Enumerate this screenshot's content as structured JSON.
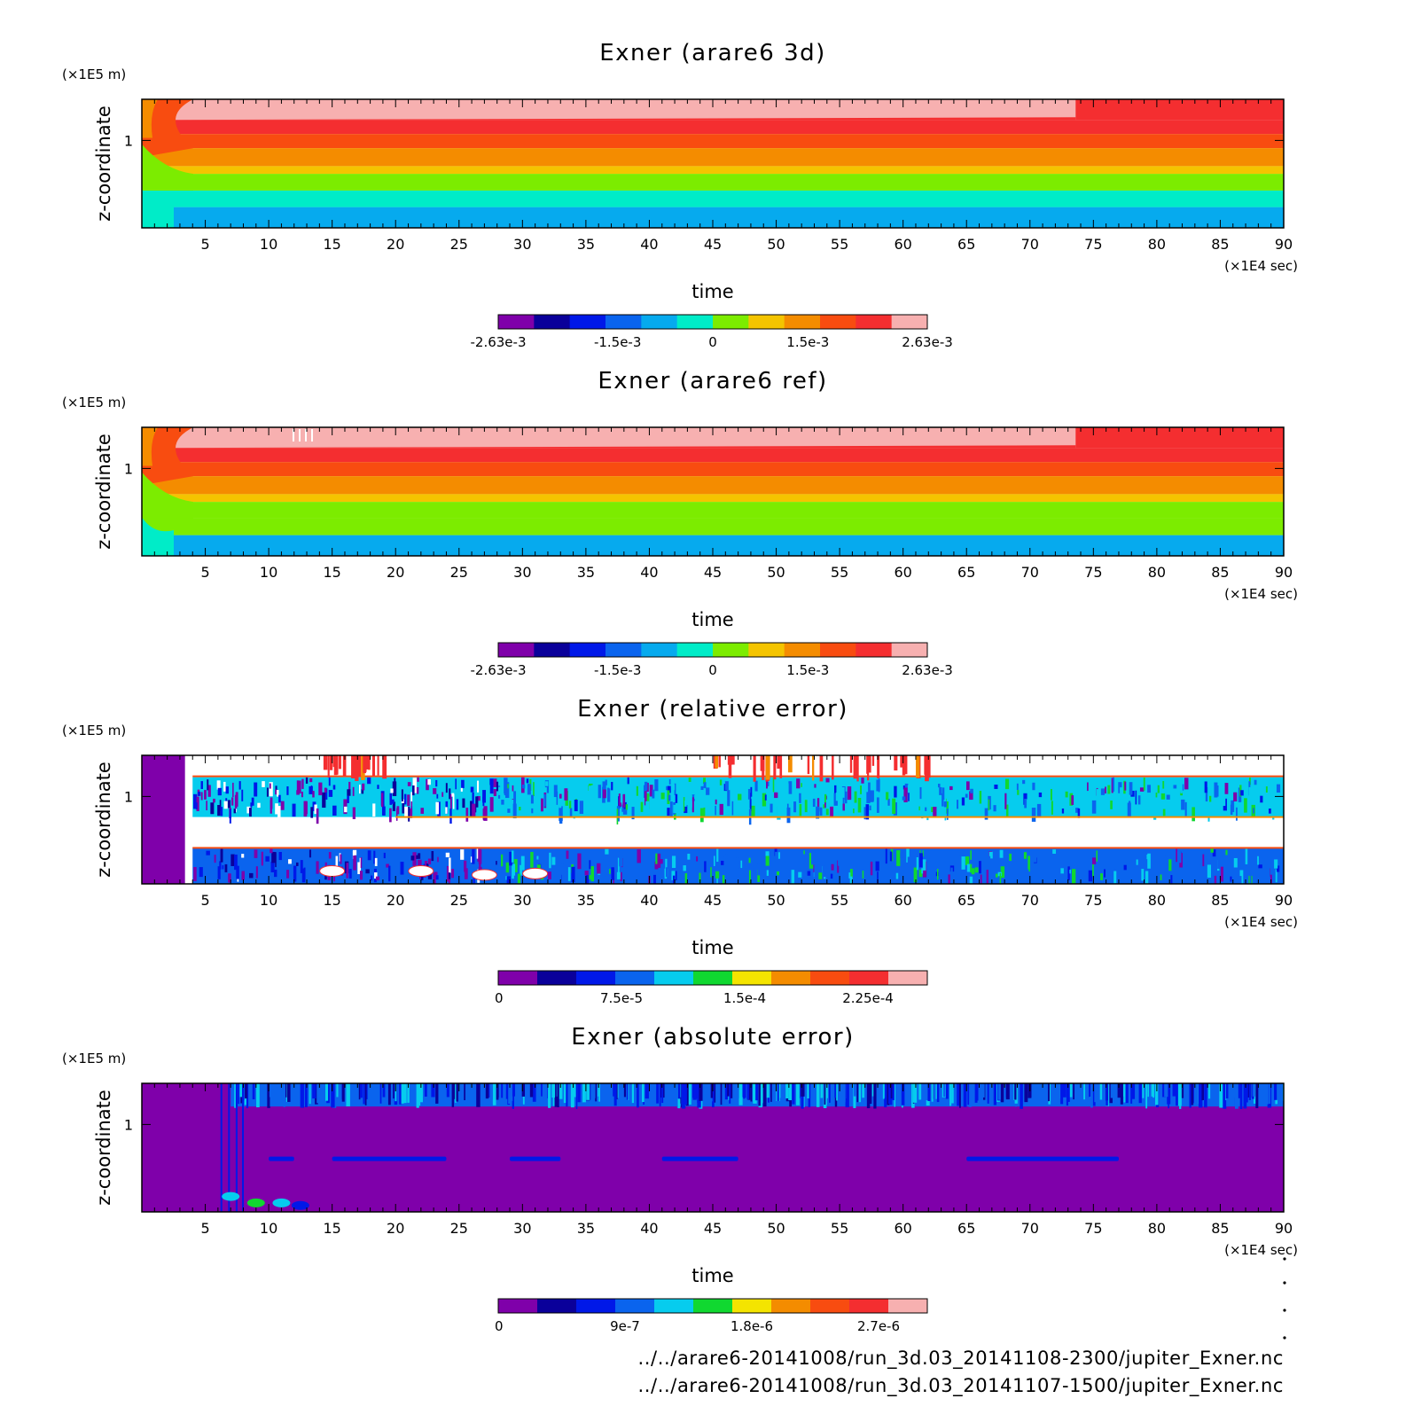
{
  "chart_data": [
    {
      "type": "heatmap",
      "title": "Exner (arare6 3d)",
      "xlabel": "time",
      "ylabel": "z-coordinate",
      "x_unit": "(×1E4 sec)",
      "y_unit": "(×1E5 m)",
      "xlim": [
        0,
        90
      ],
      "xticks": [
        "5",
        "10",
        "15",
        "20",
        "25",
        "30",
        "35",
        "40",
        "45",
        "50",
        "55",
        "60",
        "65",
        "70",
        "75",
        "80",
        "85",
        "90"
      ],
      "yticks": [
        "1"
      ],
      "colorbar": {
        "colors": [
          "#7f00aa",
          "#0a009a",
          "#0018e8",
          "#0a64ee",
          "#06aaee",
          "#00ecc8",
          "#7cec00",
          "#f4c400",
          "#f48c00",
          "#f84c10",
          "#f42e30",
          "#f7b0b0"
        ],
        "tick_labels": [
          "-2.63e-3",
          "-1.5e-3",
          "0",
          "1.5e-3",
          "2.63e-3"
        ]
      },
      "bands_top_to_bottom": [
        "#f7b0b0",
        "#f42e30",
        "#f84c10",
        "#f48c00",
        "#f4c400",
        "#7cec00",
        "#00ecc8",
        "#06aaee"
      ]
    },
    {
      "type": "heatmap",
      "title": "Exner (arare6 ref)",
      "xlabel": "time",
      "ylabel": "z-coordinate",
      "x_unit": "(×1E4 sec)",
      "y_unit": "(×1E5 m)",
      "xlim": [
        0,
        90
      ],
      "xticks": [
        "5",
        "10",
        "15",
        "20",
        "25",
        "30",
        "35",
        "40",
        "45",
        "50",
        "55",
        "60",
        "65",
        "70",
        "75",
        "80",
        "85",
        "90"
      ],
      "yticks": [
        "1"
      ],
      "colorbar": {
        "colors": [
          "#7f00aa",
          "#0a009a",
          "#0018e8",
          "#0a64ee",
          "#06aaee",
          "#00ecc8",
          "#7cec00",
          "#f4c400",
          "#f48c00",
          "#f84c10",
          "#f42e30",
          "#f7b0b0"
        ],
        "tick_labels": [
          "-2.63e-3",
          "-1.5e-3",
          "0",
          "1.5e-3",
          "2.63e-3"
        ]
      },
      "bands_top_to_bottom": [
        "#f7b0b0",
        "#f42e30",
        "#f84c10",
        "#f48c00",
        "#f4c400",
        "#7cec00",
        "#7cec00",
        "#06aaee"
      ]
    },
    {
      "type": "heatmap",
      "title": "Exner (relative error)",
      "xlabel": "time",
      "ylabel": "z-coordinate",
      "x_unit": "(×1E4 sec)",
      "y_unit": "(×1E5 m)",
      "xlim": [
        0,
        90
      ],
      "xticks": [
        "5",
        "10",
        "15",
        "20",
        "25",
        "30",
        "35",
        "40",
        "45",
        "50",
        "55",
        "60",
        "65",
        "70",
        "75",
        "80",
        "85",
        "90"
      ],
      "yticks": [
        "1"
      ],
      "colorbar": {
        "colors": [
          "#7f00aa",
          "#0a009a",
          "#0018e8",
          "#0a64ee",
          "#06ccee",
          "#10d830",
          "#f4e400",
          "#f48c00",
          "#f84c10",
          "#f42e30",
          "#f7b0b0"
        ],
        "tick_labels": [
          "0",
          "7.5e-5",
          "1.5e-4",
          "2.25e-4"
        ]
      }
    },
    {
      "type": "heatmap",
      "title": "Exner (absolute error)",
      "xlabel": "time",
      "ylabel": "z-coordinate",
      "x_unit": "(×1E4 sec)",
      "y_unit": "(×1E5 m)",
      "xlim": [
        0,
        90
      ],
      "xticks": [
        "5",
        "10",
        "15",
        "20",
        "25",
        "30",
        "35",
        "40",
        "45",
        "50",
        "55",
        "60",
        "65",
        "70",
        "75",
        "80",
        "85",
        "90"
      ],
      "yticks": [
        "1"
      ],
      "colorbar": {
        "colors": [
          "#7f00aa",
          "#0a009a",
          "#0018e8",
          "#0a64ee",
          "#06ccee",
          "#10d830",
          "#f4e400",
          "#f48c00",
          "#f84c10",
          "#f42e30",
          "#f7b0b0"
        ],
        "tick_labels": [
          "0",
          "9e-7",
          "1.8e-6",
          "2.7e-6"
        ]
      }
    }
  ],
  "footer": {
    "file_1": "../../arare6-20141008/run_3d.03_20141108-2300/jupiter_Exner.nc",
    "file_2": "../../arare6-20141008/run_3d.03_20141107-1500/jupiter_Exner.nc"
  }
}
